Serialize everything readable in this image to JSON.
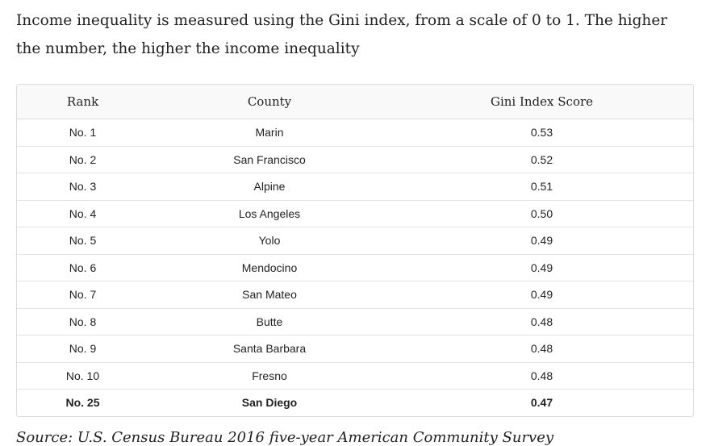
{
  "intro_text": "Income inequality is measured using the Gini index, from a scale of 0 to 1. The higher the number, the higher the income inequality",
  "table": {
    "headers": [
      "Rank",
      "County",
      "Gini Index Score"
    ],
    "rows": [
      [
        "No. 1",
        "Marin",
        "0.53"
      ],
      [
        "No. 2",
        "San Francisco",
        "0.52"
      ],
      [
        "No. 3",
        "Alpine",
        "0.51"
      ],
      [
        "No. 4",
        "Los Angeles",
        "0.50"
      ],
      [
        "No. 5",
        "Yolo",
        "0.49"
      ],
      [
        "No. 6",
        "Mendocino",
        "0.49"
      ],
      [
        "No. 7",
        "San Mateo",
        "0.49"
      ],
      [
        "No. 8",
        "Butte",
        "0.48"
      ],
      [
        "No. 9",
        "Santa Barbara",
        "0.48"
      ],
      [
        "No. 10",
        "Fresno",
        "0.48"
      ],
      [
        "No. 25",
        "San Diego",
        "0.47"
      ]
    ]
  },
  "source_text": "Source: U.S. Census Bureau 2016 five-year American Community Survey"
}
